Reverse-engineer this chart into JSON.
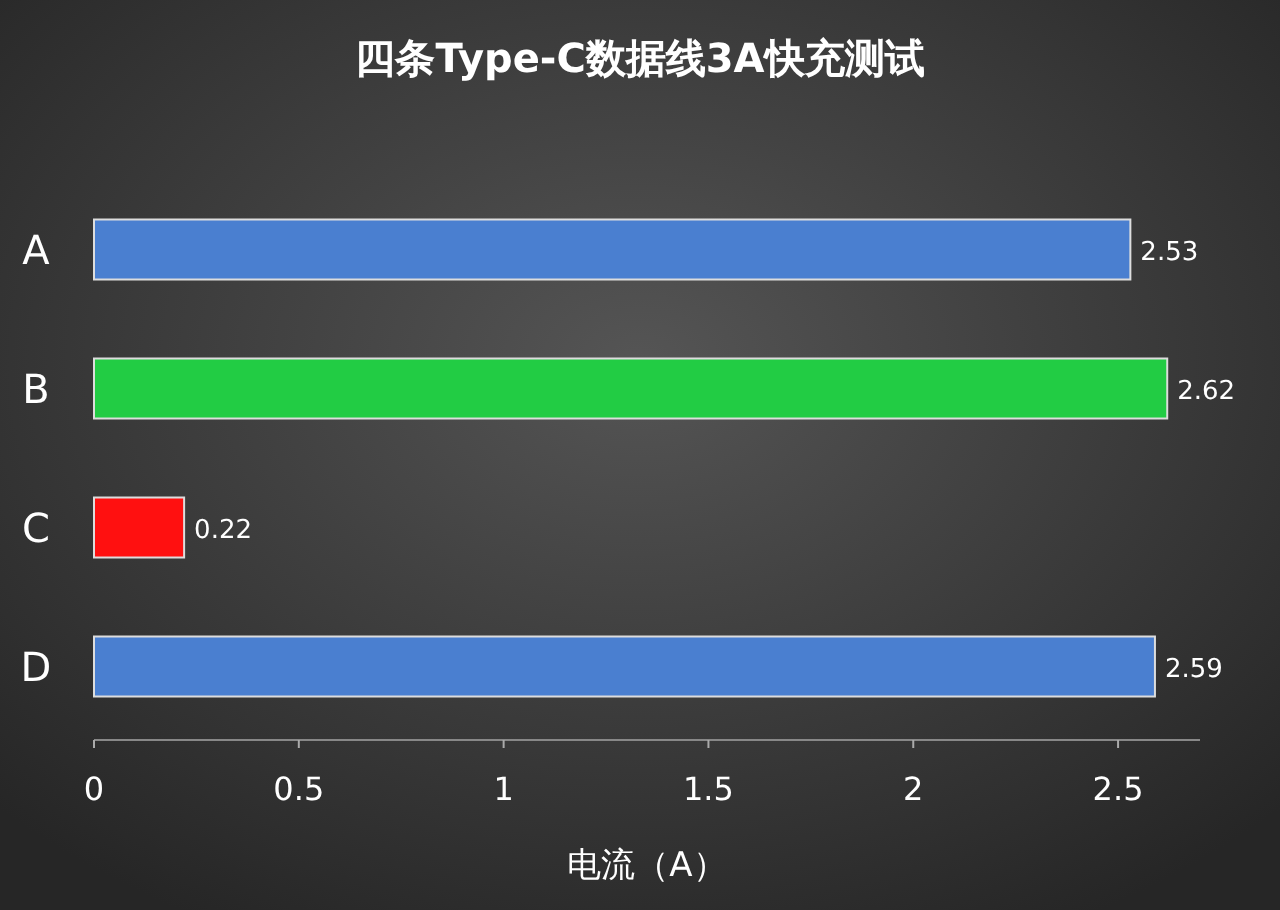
{
  "chart_data": {
    "type": "bar",
    "orientation": "horizontal",
    "title": "四条Type-C数据线3A快充测试",
    "xlabel": "电流（A）",
    "categories": [
      "A",
      "B",
      "C",
      "D"
    ],
    "values": [
      2.53,
      2.62,
      0.22,
      2.59
    ],
    "colors": [
      "#4a7fd0",
      "#22cc44",
      "#ff1010",
      "#4a7fd0"
    ],
    "xlim": [
      0,
      2.7
    ],
    "xticks": [
      0,
      0.5,
      1,
      1.5,
      2,
      2.5
    ],
    "data_labels": true
  }
}
